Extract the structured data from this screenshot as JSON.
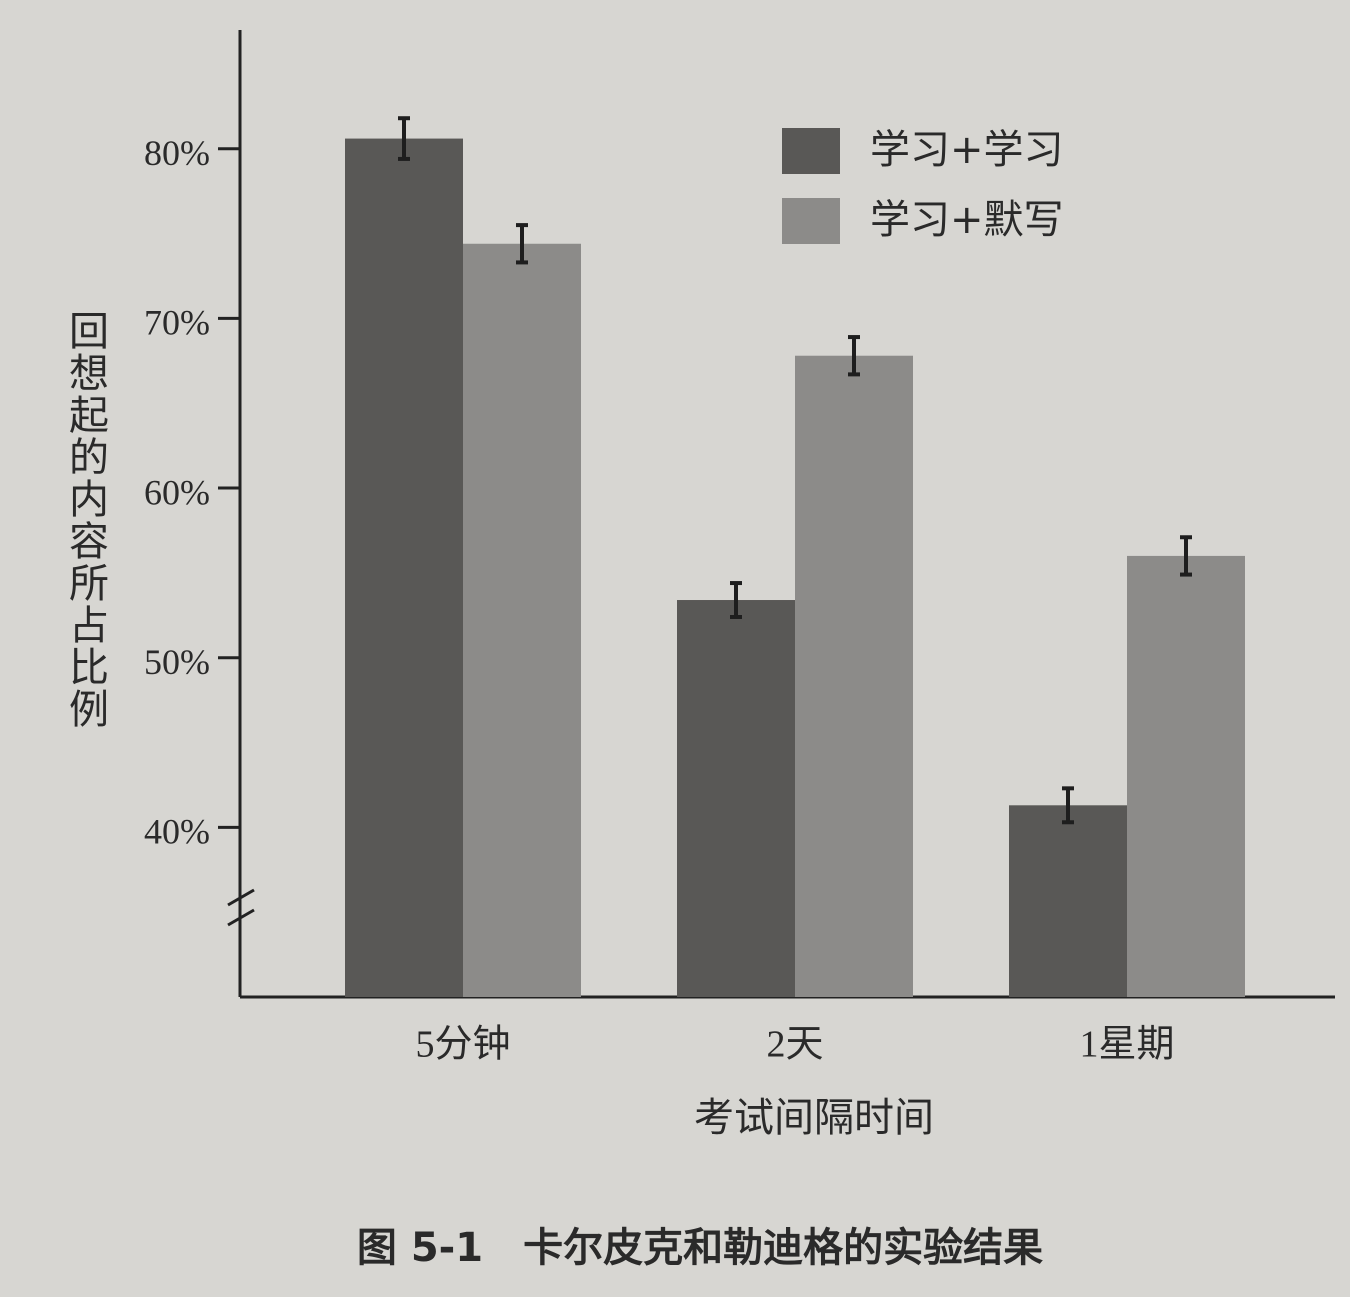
{
  "chart_data": {
    "type": "bar",
    "caption": "图 5-1　卡尔皮克和勒迪格的实验结果",
    "x_label": "考试间隔时间",
    "y_label": "回想起的内容所占比例",
    "categories": [
      "5分钟",
      "2天",
      "1星期"
    ],
    "series": [
      {
        "name": "学习+学习",
        "color": "#595856",
        "values": [
          80.6,
          53.4,
          41.3
        ],
        "errors": [
          1.2,
          1.0,
          1.0
        ]
      },
      {
        "name": "学习+默写",
        "color": "#8c8b89",
        "values": [
          74.4,
          67.8,
          56.0
        ],
        "errors": [
          1.1,
          1.1,
          1.1
        ]
      }
    ],
    "ylim": [
      30,
      87
    ],
    "yticks": [
      {
        "value": 40,
        "label": "40%"
      },
      {
        "value": 50,
        "label": "50%"
      },
      {
        "value": 60,
        "label": "60%"
      },
      {
        "value": 70,
        "label": "70%"
      },
      {
        "value": 80,
        "label": "80%"
      }
    ],
    "legend": "upper right",
    "grid": false
  }
}
